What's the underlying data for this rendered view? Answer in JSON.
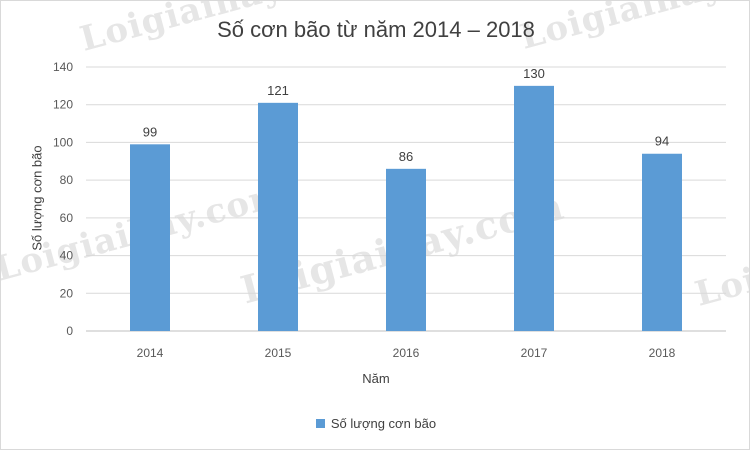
{
  "watermark": "Loigiaihay.com",
  "chart_data": {
    "type": "bar",
    "title": "Số cơn bão từ năm 2014 – 2018",
    "xlabel": "Năm",
    "ylabel": "Số lượng cơn bão",
    "categories": [
      "2014",
      "2015",
      "2016",
      "2017",
      "2018"
    ],
    "series": [
      {
        "name": "Số lượng cơn bão",
        "values": [
          99,
          121,
          86,
          130,
          94
        ],
        "color": "#5b9bd5"
      }
    ],
    "ylim": [
      0,
      140
    ],
    "yticks": [
      0,
      20,
      40,
      60,
      80,
      100,
      120,
      140
    ],
    "grid": true,
    "legend": "bottom",
    "data_labels": true
  }
}
